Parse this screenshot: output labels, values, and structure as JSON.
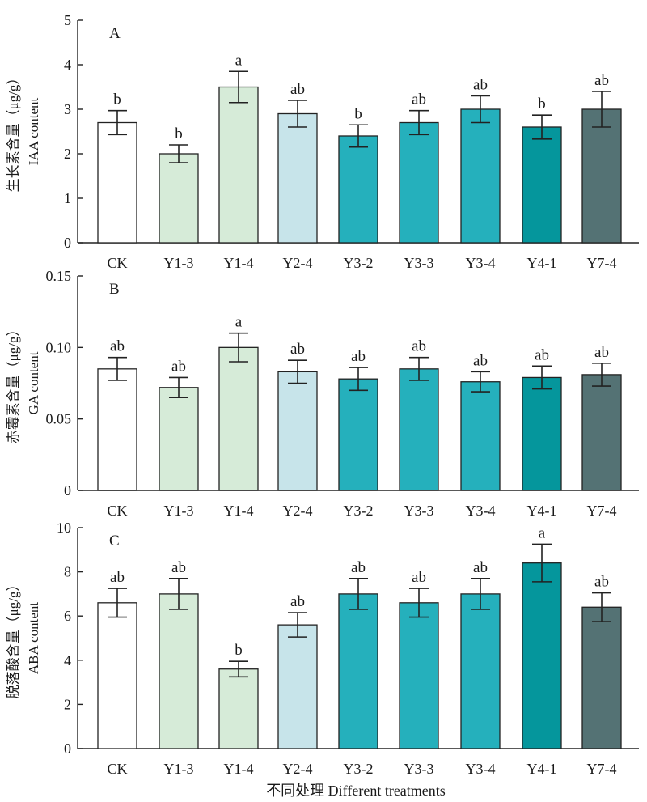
{
  "chart_data": [
    {
      "type": "bar",
      "panel": "A",
      "ylabel_cn": "生长素含量（μg/g）",
      "ylabel_en": "IAA content",
      "categories": [
        "CK",
        "Y1-3",
        "Y1-4",
        "Y2-4",
        "Y3-2",
        "Y3-3",
        "Y3-4",
        "Y4-1",
        "Y7-4"
      ],
      "values": [
        2.7,
        2.0,
        3.5,
        2.9,
        2.4,
        2.7,
        3.0,
        2.6,
        3.0
      ],
      "errors": [
        0.27,
        0.2,
        0.35,
        0.3,
        0.25,
        0.27,
        0.3,
        0.27,
        0.4
      ],
      "significance": [
        "b",
        "b",
        "a",
        "ab",
        "b",
        "ab",
        "ab",
        "b",
        "ab"
      ],
      "ylim": [
        0,
        5
      ],
      "yticks": [
        "0",
        "1",
        "2",
        "3",
        "4",
        "5"
      ]
    },
    {
      "type": "bar",
      "panel": "B",
      "ylabel_cn": "赤霉素含量（μg/g）",
      "ylabel_en": "GA content",
      "categories": [
        "CK",
        "Y1-3",
        "Y1-4",
        "Y2-4",
        "Y3-2",
        "Y3-3",
        "Y3-4",
        "Y4-1",
        "Y7-4"
      ],
      "values": [
        0.085,
        0.072,
        0.1,
        0.083,
        0.078,
        0.085,
        0.076,
        0.079,
        0.081
      ],
      "errors": [
        0.008,
        0.007,
        0.01,
        0.008,
        0.008,
        0.008,
        0.007,
        0.008,
        0.008
      ],
      "significance": [
        "ab",
        "ab",
        "a",
        "ab",
        "ab",
        "ab",
        "ab",
        "ab",
        "ab"
      ],
      "ylim": [
        0,
        0.15
      ],
      "yticks": [
        "0",
        "0.05",
        "0.10",
        "0.15"
      ]
    },
    {
      "type": "bar",
      "panel": "C",
      "ylabel_cn": "脱落酸含量（μg/g）",
      "ylabel_en": "ABA  content",
      "categories": [
        "CK",
        "Y1-3",
        "Y1-4",
        "Y2-4",
        "Y3-2",
        "Y3-3",
        "Y3-4",
        "Y4-1",
        "Y7-4"
      ],
      "values": [
        6.6,
        7.0,
        3.6,
        5.6,
        7.0,
        6.6,
        7.0,
        8.4,
        6.4
      ],
      "errors": [
        0.65,
        0.7,
        0.35,
        0.55,
        0.7,
        0.65,
        0.7,
        0.85,
        0.65
      ],
      "significance": [
        "ab",
        "ab",
        "b",
        "ab",
        "ab",
        "ab",
        "ab",
        "a",
        "ab"
      ],
      "ylim": [
        0,
        10
      ],
      "yticks": [
        "0",
        "2",
        "4",
        "6",
        "8",
        "10"
      ]
    }
  ],
  "xlabel": "不同处理 Different treatments",
  "bar_colors": [
    "#ffffff",
    "#d6ebd8",
    "#d6ebd8",
    "#c7e4ea",
    "#25b0bc",
    "#25b0bc",
    "#25b0bc",
    "#05969c",
    "#547274"
  ]
}
